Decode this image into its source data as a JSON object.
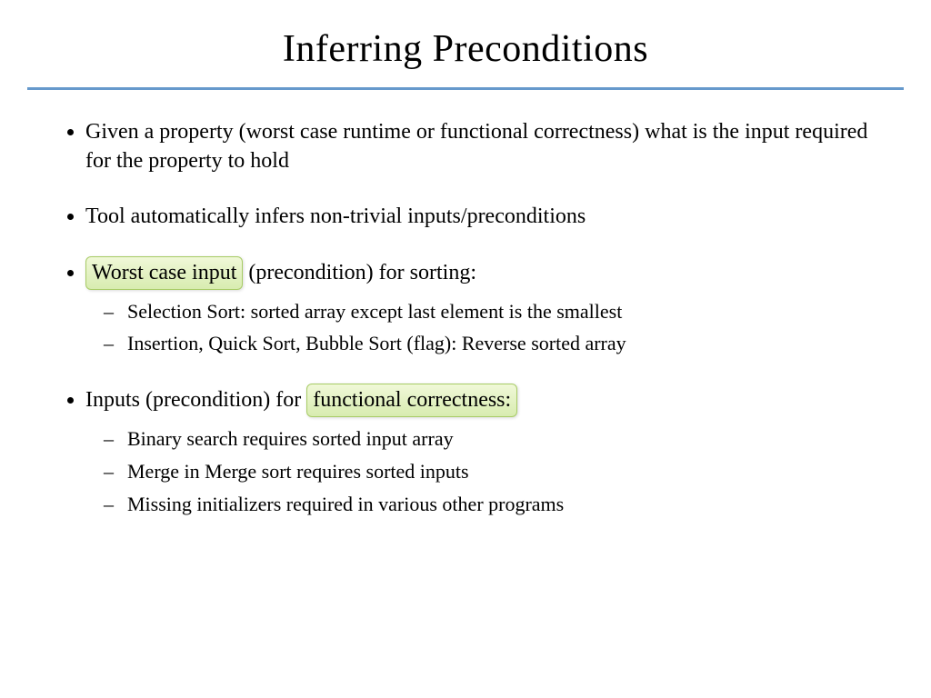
{
  "slide": {
    "title": "Inferring Preconditions",
    "title_fontsize": 42,
    "rule_color": "#6699cc",
    "highlight_bg_top": "#f0f8d8",
    "highlight_bg_bottom": "#d8ecb0",
    "highlight_border": "#a8cc66",
    "font_family": "Comic Sans MS",
    "text_color": "#000000",
    "background_color": "#ffffff",
    "body_fontsize": 24,
    "sub_fontsize": 22,
    "bullets": [
      {
        "text": "Given a property (worst case runtime or functional correctness) what is the input required for the property to hold"
      },
      {
        "text": "Tool automatically infers non-trivial inputs/preconditions"
      },
      {
        "highlight_pre": "Worst case input",
        "text_post": " (precondition) for sorting:",
        "sub": [
          "Selection Sort: sorted array except last element is the smallest",
          "Insertion, Quick Sort, Bubble Sort (flag): Reverse sorted array"
        ]
      },
      {
        "text_pre": "Inputs (precondition) for ",
        "highlight_post": "functional correctness:",
        "sub": [
          "Binary search requires sorted input array",
          "Merge in Merge sort requires sorted inputs",
          "Missing initializers required in various other programs"
        ]
      }
    ]
  }
}
